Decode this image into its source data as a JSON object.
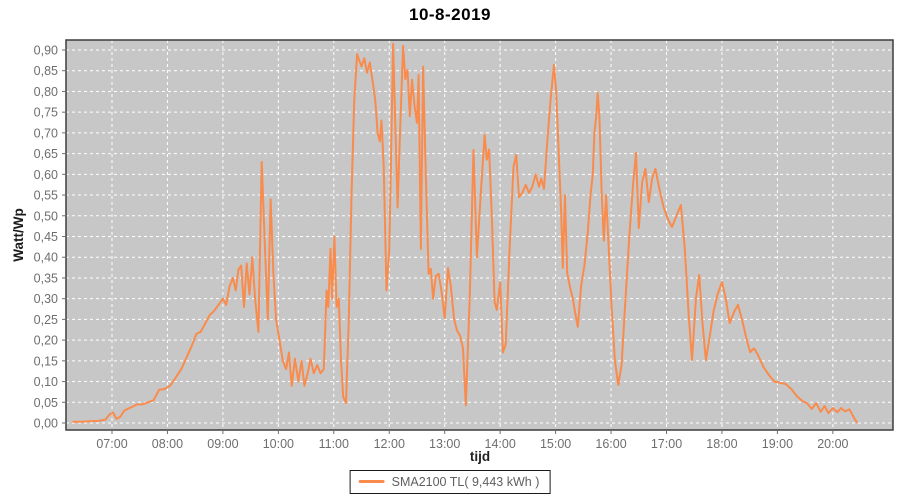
{
  "chart_data": {
    "type": "line",
    "title": "10-8-2019",
    "xlabel": "tijd",
    "ylabel": "Watt/Wp",
    "x_unit": "hours",
    "xlim": [
      6.17,
      21.08
    ],
    "ylim": [
      -0.017,
      0.924
    ],
    "grid": true,
    "plot_bg": "#c7c7c7",
    "grid_color": "#ffffff",
    "border_color": "#3d3d3d",
    "tick_color": "#6e6e6e",
    "x_ticks": [
      {
        "t": 7,
        "label": "07:00"
      },
      {
        "t": 8,
        "label": "08:00"
      },
      {
        "t": 9,
        "label": "09:00"
      },
      {
        "t": 10,
        "label": "10:00"
      },
      {
        "t": 11,
        "label": "11:00"
      },
      {
        "t": 12,
        "label": "12:00"
      },
      {
        "t": 13,
        "label": "13:00"
      },
      {
        "t": 14,
        "label": "14:00"
      },
      {
        "t": 15,
        "label": "15:00"
      },
      {
        "t": 16,
        "label": "16:00"
      },
      {
        "t": 17,
        "label": "17:00"
      },
      {
        "t": 18,
        "label": "18:00"
      },
      {
        "t": 19,
        "label": "19:00"
      },
      {
        "t": 20,
        "label": "20:00"
      }
    ],
    "y_ticks": [
      {
        "v": 0.0,
        "label": "0,00"
      },
      {
        "v": 0.05,
        "label": "0,05"
      },
      {
        "v": 0.1,
        "label": "0,10"
      },
      {
        "v": 0.15,
        "label": "0,15"
      },
      {
        "v": 0.2,
        "label": "0,20"
      },
      {
        "v": 0.25,
        "label": "0,25"
      },
      {
        "v": 0.3,
        "label": "0,30"
      },
      {
        "v": 0.35,
        "label": "0,35"
      },
      {
        "v": 0.4,
        "label": "0,40"
      },
      {
        "v": 0.45,
        "label": "0,45"
      },
      {
        "v": 0.5,
        "label": "0,50"
      },
      {
        "v": 0.55,
        "label": "0,55"
      },
      {
        "v": 0.6,
        "label": "0,60"
      },
      {
        "v": 0.65,
        "label": "0,65"
      },
      {
        "v": 0.7,
        "label": "0,70"
      },
      {
        "v": 0.75,
        "label": "0,75"
      },
      {
        "v": 0.8,
        "label": "0,80"
      },
      {
        "v": 0.85,
        "label": "0,85"
      },
      {
        "v": 0.9,
        "label": "0,90"
      }
    ],
    "legend": {
      "position": "bottom",
      "label": "SMA2100 TL( 9,443 kWh )"
    },
    "series": [
      {
        "name": "SMA2100 TL( 9,443 kWh )",
        "color": "#f98b4d",
        "line_width": 2,
        "points": [
          [
            6.3,
            0.003
          ],
          [
            6.45,
            0.003
          ],
          [
            6.6,
            0.004
          ],
          [
            6.75,
            0.005
          ],
          [
            6.88,
            0.008
          ],
          [
            6.95,
            0.02
          ],
          [
            7.02,
            0.025
          ],
          [
            7.08,
            0.01
          ],
          [
            7.15,
            0.015
          ],
          [
            7.22,
            0.03
          ],
          [
            7.3,
            0.035
          ],
          [
            7.38,
            0.04
          ],
          [
            7.45,
            0.045
          ],
          [
            7.55,
            0.045
          ],
          [
            7.65,
            0.05
          ],
          [
            7.75,
            0.055
          ],
          [
            7.85,
            0.08
          ],
          [
            7.95,
            0.082
          ],
          [
            8.05,
            0.09
          ],
          [
            8.15,
            0.11
          ],
          [
            8.25,
            0.13
          ],
          [
            8.35,
            0.16
          ],
          [
            8.45,
            0.19
          ],
          [
            8.52,
            0.215
          ],
          [
            8.6,
            0.22
          ],
          [
            8.68,
            0.24
          ],
          [
            8.76,
            0.26
          ],
          [
            8.84,
            0.27
          ],
          [
            8.92,
            0.285
          ],
          [
            9.0,
            0.3
          ],
          [
            9.06,
            0.285
          ],
          [
            9.12,
            0.33
          ],
          [
            9.18,
            0.35
          ],
          [
            9.23,
            0.32
          ],
          [
            9.28,
            0.37
          ],
          [
            9.33,
            0.38
          ],
          [
            9.38,
            0.28
          ],
          [
            9.43,
            0.385
          ],
          [
            9.48,
            0.31
          ],
          [
            9.53,
            0.4
          ],
          [
            9.58,
            0.3
          ],
          [
            9.64,
            0.22
          ],
          [
            9.7,
            0.63
          ],
          [
            9.76,
            0.42
          ],
          [
            9.81,
            0.25
          ],
          [
            9.86,
            0.54
          ],
          [
            9.91,
            0.36
          ],
          [
            9.96,
            0.25
          ],
          [
            10.02,
            0.2
          ],
          [
            10.08,
            0.15
          ],
          [
            10.14,
            0.13
          ],
          [
            10.19,
            0.17
          ],
          [
            10.24,
            0.09
          ],
          [
            10.3,
            0.155
          ],
          [
            10.36,
            0.1
          ],
          [
            10.42,
            0.15
          ],
          [
            10.47,
            0.09
          ],
          [
            10.53,
            0.12
          ],
          [
            10.58,
            0.155
          ],
          [
            10.64,
            0.12
          ],
          [
            10.7,
            0.14
          ],
          [
            10.76,
            0.12
          ],
          [
            10.82,
            0.13
          ],
          [
            10.87,
            0.32
          ],
          [
            10.9,
            0.28
          ],
          [
            10.94,
            0.42
          ],
          [
            10.97,
            0.3
          ],
          [
            11.01,
            0.45
          ],
          [
            11.05,
            0.28
          ],
          [
            11.09,
            0.3
          ],
          [
            11.13,
            0.15
          ],
          [
            11.17,
            0.063
          ],
          [
            11.22,
            0.048
          ],
          [
            11.27,
            0.25
          ],
          [
            11.32,
            0.55
          ],
          [
            11.37,
            0.78
          ],
          [
            11.42,
            0.89
          ],
          [
            11.46,
            0.875
          ],
          [
            11.5,
            0.86
          ],
          [
            11.55,
            0.88
          ],
          [
            11.6,
            0.845
          ],
          [
            11.65,
            0.87
          ],
          [
            11.71,
            0.815
          ],
          [
            11.75,
            0.775
          ],
          [
            11.79,
            0.7
          ],
          [
            11.83,
            0.68
          ],
          [
            11.86,
            0.73
          ],
          [
            11.9,
            0.62
          ],
          [
            11.95,
            0.32
          ],
          [
            12.0,
            0.42
          ],
          [
            12.04,
            0.7
          ],
          [
            12.07,
            0.915
          ],
          [
            12.11,
            0.72
          ],
          [
            12.15,
            0.52
          ],
          [
            12.2,
            0.72
          ],
          [
            12.25,
            0.91
          ],
          [
            12.29,
            0.83
          ],
          [
            12.33,
            0.852
          ],
          [
            12.37,
            0.74
          ],
          [
            12.41,
            0.828
          ],
          [
            12.46,
            0.76
          ],
          [
            12.5,
            0.724
          ],
          [
            12.53,
            0.84
          ],
          [
            12.57,
            0.42
          ],
          [
            12.61,
            0.86
          ],
          [
            12.66,
            0.6
          ],
          [
            12.71,
            0.36
          ],
          [
            12.75,
            0.372
          ],
          [
            12.79,
            0.3
          ],
          [
            12.84,
            0.355
          ],
          [
            12.89,
            0.36
          ],
          [
            12.94,
            0.32
          ],
          [
            13.0,
            0.253
          ],
          [
            13.06,
            0.374
          ],
          [
            13.11,
            0.33
          ],
          [
            13.17,
            0.25
          ],
          [
            13.22,
            0.224
          ],
          [
            13.28,
            0.21
          ],
          [
            13.33,
            0.18
          ],
          [
            13.38,
            0.043
          ],
          [
            13.45,
            0.3
          ],
          [
            13.52,
            0.659
          ],
          [
            13.58,
            0.4
          ],
          [
            13.65,
            0.55
          ],
          [
            13.72,
            0.695
          ],
          [
            13.76,
            0.635
          ],
          [
            13.8,
            0.66
          ],
          [
            13.85,
            0.5
          ],
          [
            13.9,
            0.292
          ],
          [
            13.94,
            0.273
          ],
          [
            14.0,
            0.34
          ],
          [
            14.05,
            0.17
          ],
          [
            14.1,
            0.19
          ],
          [
            14.17,
            0.42
          ],
          [
            14.24,
            0.618
          ],
          [
            14.29,
            0.647
          ],
          [
            14.34,
            0.545
          ],
          [
            14.4,
            0.555
          ],
          [
            14.46,
            0.575
          ],
          [
            14.52,
            0.555
          ],
          [
            14.58,
            0.57
          ],
          [
            14.64,
            0.6
          ],
          [
            14.7,
            0.57
          ],
          [
            14.74,
            0.59
          ],
          [
            14.79,
            0.565
          ],
          [
            14.85,
            0.68
          ],
          [
            14.91,
            0.78
          ],
          [
            14.97,
            0.864
          ],
          [
            15.01,
            0.8
          ],
          [
            15.06,
            0.64
          ],
          [
            15.1,
            0.514
          ],
          [
            15.13,
            0.374
          ],
          [
            15.17,
            0.55
          ],
          [
            15.21,
            0.362
          ],
          [
            15.26,
            0.328
          ],
          [
            15.31,
            0.3
          ],
          [
            15.36,
            0.26
          ],
          [
            15.4,
            0.232
          ],
          [
            15.46,
            0.33
          ],
          [
            15.52,
            0.38
          ],
          [
            15.58,
            0.46
          ],
          [
            15.63,
            0.55
          ],
          [
            15.67,
            0.6
          ],
          [
            15.7,
            0.7
          ],
          [
            15.73,
            0.738
          ],
          [
            15.76,
            0.796
          ],
          [
            15.79,
            0.74
          ],
          [
            15.83,
            0.56
          ],
          [
            15.87,
            0.44
          ],
          [
            15.91,
            0.55
          ],
          [
            15.96,
            0.42
          ],
          [
            16.01,
            0.28
          ],
          [
            16.07,
            0.15
          ],
          [
            16.13,
            0.092
          ],
          [
            16.19,
            0.14
          ],
          [
            16.26,
            0.3
          ],
          [
            16.33,
            0.45
          ],
          [
            16.4,
            0.58
          ],
          [
            16.45,
            0.652
          ],
          [
            16.5,
            0.47
          ],
          [
            16.56,
            0.58
          ],
          [
            16.62,
            0.613
          ],
          [
            16.68,
            0.533
          ],
          [
            16.74,
            0.59
          ],
          [
            16.8,
            0.613
          ],
          [
            16.88,
            0.56
          ],
          [
            16.95,
            0.52
          ],
          [
            17.03,
            0.49
          ],
          [
            17.1,
            0.473
          ],
          [
            17.18,
            0.5
          ],
          [
            17.26,
            0.526
          ],
          [
            17.33,
            0.42
          ],
          [
            17.4,
            0.26
          ],
          [
            17.46,
            0.152
          ],
          [
            17.53,
            0.3
          ],
          [
            17.59,
            0.357
          ],
          [
            17.65,
            0.24
          ],
          [
            17.71,
            0.152
          ],
          [
            17.78,
            0.21
          ],
          [
            17.85,
            0.27
          ],
          [
            17.92,
            0.31
          ],
          [
            18.0,
            0.34
          ],
          [
            18.07,
            0.3
          ],
          [
            18.14,
            0.241
          ],
          [
            18.22,
            0.268
          ],
          [
            18.29,
            0.285
          ],
          [
            18.37,
            0.245
          ],
          [
            18.44,
            0.205
          ],
          [
            18.51,
            0.171
          ],
          [
            18.58,
            0.18
          ],
          [
            18.65,
            0.164
          ],
          [
            18.75,
            0.135
          ],
          [
            18.85,
            0.115
          ],
          [
            18.95,
            0.1
          ],
          [
            19.05,
            0.097
          ],
          [
            19.15,
            0.094
          ],
          [
            19.25,
            0.082
          ],
          [
            19.35,
            0.065
          ],
          [
            19.45,
            0.053
          ],
          [
            19.53,
            0.048
          ],
          [
            19.62,
            0.034
          ],
          [
            19.7,
            0.048
          ],
          [
            19.78,
            0.027
          ],
          [
            19.85,
            0.041
          ],
          [
            19.92,
            0.024
          ],
          [
            20.0,
            0.036
          ],
          [
            20.08,
            0.026
          ],
          [
            20.15,
            0.036
          ],
          [
            20.22,
            0.028
          ],
          [
            20.3,
            0.033
          ],
          [
            20.37,
            0.015
          ],
          [
            20.43,
            0.002
          ]
        ]
      }
    ]
  }
}
